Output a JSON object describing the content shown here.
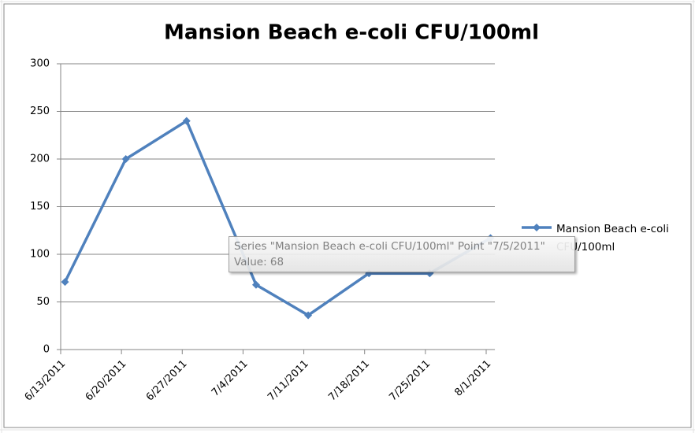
{
  "chart_data": {
    "type": "line",
    "title": "Mansion Beach e-coli CFU/100ml",
    "x": [
      "6/13/2011",
      "6/20/2011",
      "6/27/2011",
      "7/5/2011",
      "7/11/2011",
      "7/18/2011",
      "7/25/2011",
      "8/1/2011"
    ],
    "series": [
      {
        "name": "Mansion Beach e-coli CFU/100ml",
        "color": "#4f81bd",
        "values": [
          71,
          200,
          240,
          68,
          36,
          80,
          80,
          117
        ]
      }
    ],
    "xlim": [
      "6/13/2011",
      "8/1/2011"
    ],
    "xticks": [
      "6/13/2011",
      "6/20/2011",
      "6/27/2011",
      "7/4/2011",
      "7/11/2011",
      "7/18/2011",
      "7/25/2011",
      "8/1/2011"
    ],
    "ylim": [
      0,
      300
    ],
    "yticks": [
      0,
      50,
      100,
      150,
      200,
      250,
      300
    ],
    "grid": true,
    "legend": "right",
    "tooltip": {
      "line1": "Series \"Mansion Beach e-coli CFU/100ml\" Point \"7/5/2011\"",
      "line2": "Value: 68"
    }
  }
}
